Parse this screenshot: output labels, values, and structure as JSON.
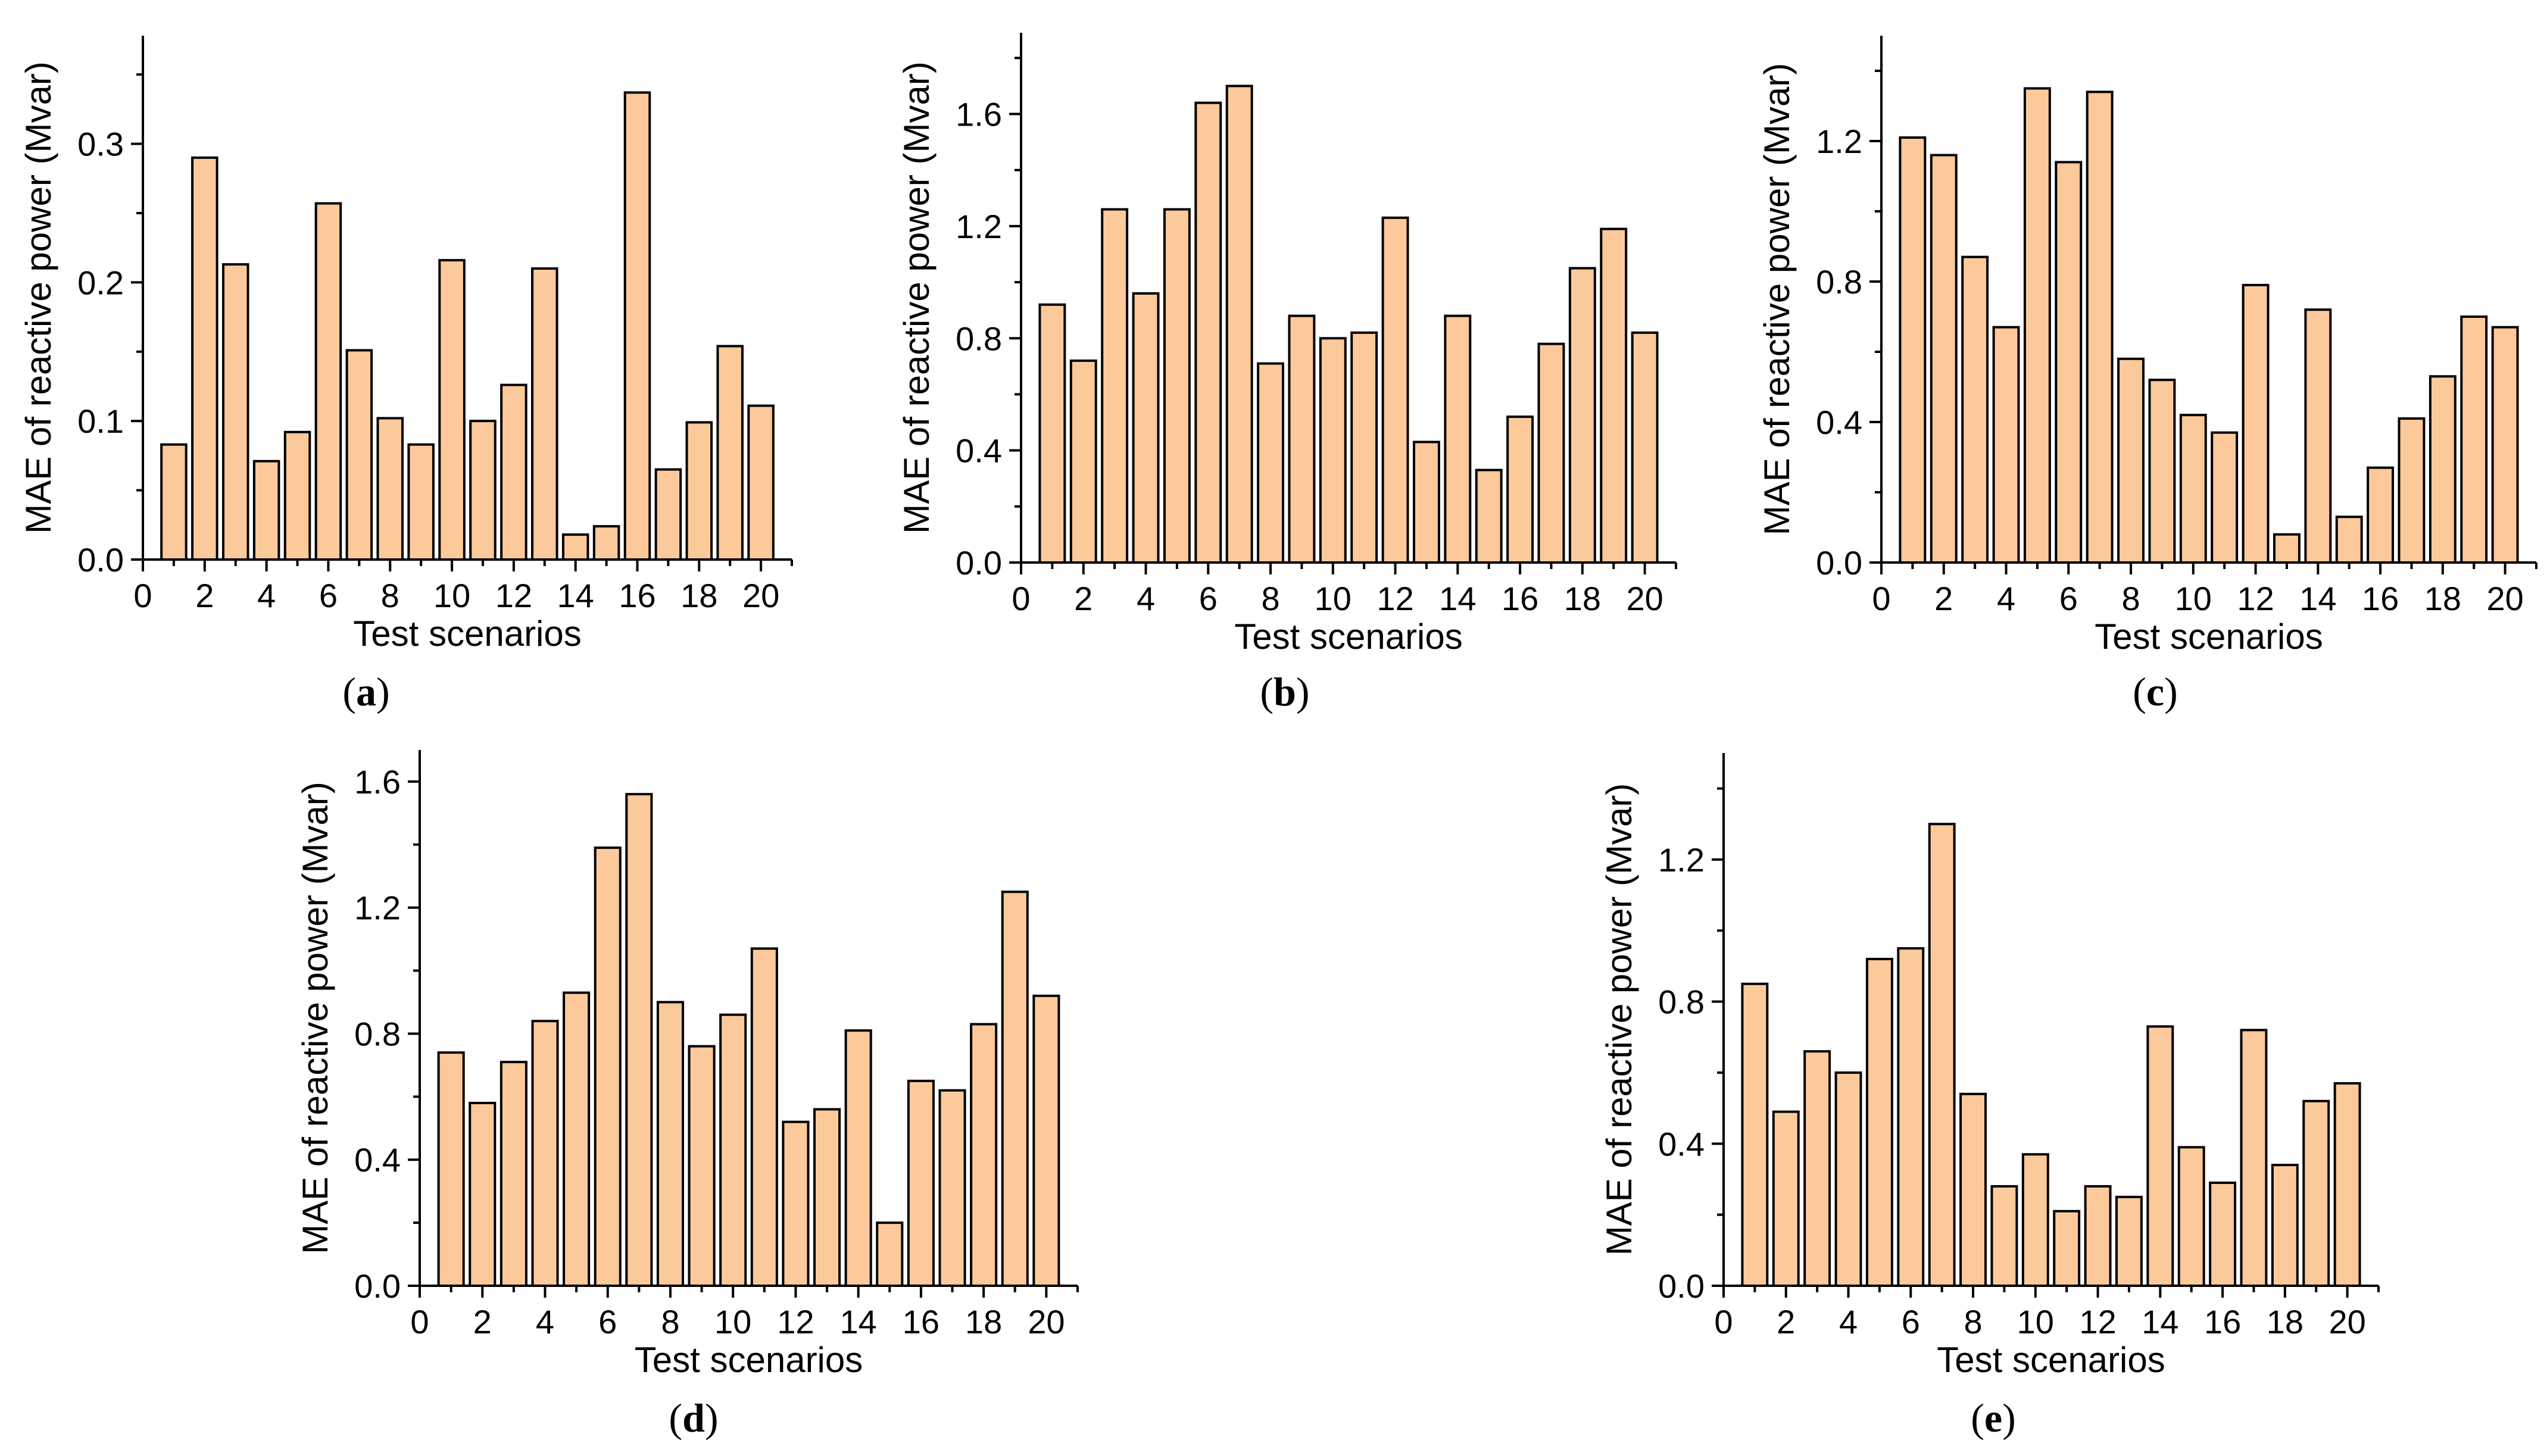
{
  "style": {
    "bar_fill": "#FCC99A",
    "bar_stroke": "#000000",
    "axis_color": "#000000"
  },
  "chart_data": [
    {
      "id": "a",
      "type": "bar",
      "panel_label_open": "(",
      "panel_label_letter": "a",
      "panel_label_close": ")",
      "xlabel": "Test scenarios",
      "ylabel": "MAE of reactive power (Mvar)",
      "x": [
        1,
        2,
        3,
        4,
        5,
        6,
        7,
        8,
        9,
        10,
        11,
        12,
        13,
        14,
        15,
        16,
        17,
        18,
        19,
        20
      ],
      "values": [
        0.083,
        0.29,
        0.213,
        0.071,
        0.092,
        0.257,
        0.151,
        0.102,
        0.083,
        0.216,
        0.1,
        0.126,
        0.21,
        0.018,
        0.024,
        0.337,
        0.065,
        0.099,
        0.154,
        0.111
      ],
      "xlim": [
        0,
        21
      ],
      "ylim": [
        0,
        0.378
      ],
      "xticks": [
        0,
        2,
        4,
        6,
        8,
        10,
        12,
        14,
        16,
        18,
        20
      ],
      "yticks": [
        0.0,
        0.1,
        0.2,
        0.3
      ],
      "ytick_labels": [
        "0.0",
        "0.1",
        "0.2",
        "0.3"
      ],
      "grid": false
    },
    {
      "id": "b",
      "type": "bar",
      "panel_label_open": "(",
      "panel_label_letter": "b",
      "panel_label_close": ")",
      "xlabel": "Test scenarios",
      "ylabel": "MAE of reactive power (Mvar)",
      "x": [
        1,
        2,
        3,
        4,
        5,
        6,
        7,
        8,
        9,
        10,
        11,
        12,
        13,
        14,
        15,
        16,
        17,
        18,
        19,
        20
      ],
      "values": [
        0.92,
        0.72,
        1.26,
        0.96,
        1.26,
        1.64,
        1.7,
        0.71,
        0.88,
        0.8,
        0.82,
        1.23,
        0.43,
        0.88,
        0.33,
        0.52,
        0.78,
        1.05,
        1.19,
        0.82
      ],
      "xlim": [
        0,
        21
      ],
      "ylim": [
        0,
        1.89
      ],
      "xticks": [
        0,
        2,
        4,
        6,
        8,
        10,
        12,
        14,
        16,
        18,
        20
      ],
      "yticks": [
        0.0,
        0.4,
        0.8,
        1.2,
        1.6
      ],
      "ytick_labels": [
        "0.0",
        "0.4",
        "0.8",
        "1.2",
        "1.6"
      ],
      "grid": false
    },
    {
      "id": "c",
      "type": "bar",
      "panel_label_open": "(",
      "panel_label_letter": "c",
      "panel_label_close": ")",
      "xlabel": "Test scenarios",
      "ylabel": "MAE of reactive power (Mvar)",
      "x": [
        1,
        2,
        3,
        4,
        5,
        6,
        7,
        8,
        9,
        10,
        11,
        12,
        13,
        14,
        15,
        16,
        17,
        18,
        19,
        20
      ],
      "values": [
        1.21,
        1.16,
        0.87,
        0.67,
        1.35,
        1.14,
        1.34,
        0.58,
        0.52,
        0.42,
        0.37,
        0.79,
        0.08,
        0.72,
        0.13,
        0.27,
        0.41,
        0.53,
        0.7,
        0.67
      ],
      "xlim": [
        0,
        21
      ],
      "ylim": [
        0,
        1.5
      ],
      "xticks": [
        0,
        2,
        4,
        6,
        8,
        10,
        12,
        14,
        16,
        18,
        20
      ],
      "yticks": [
        0.0,
        0.4,
        0.8,
        1.2
      ],
      "ytick_labels": [
        "0.0",
        "0.4",
        "0.8",
        "1.2"
      ],
      "grid": false
    },
    {
      "id": "d",
      "type": "bar",
      "panel_label_open": "(",
      "panel_label_letter": "d",
      "panel_label_close": ")",
      "xlabel": "Test scenarios",
      "ylabel": "MAE of reactive power (Mvar)",
      "x": [
        1,
        2,
        3,
        4,
        5,
        6,
        7,
        8,
        9,
        10,
        11,
        12,
        13,
        14,
        15,
        16,
        17,
        18,
        19,
        20
      ],
      "values": [
        0.74,
        0.58,
        0.71,
        0.84,
        0.93,
        1.39,
        1.56,
        0.9,
        0.76,
        0.86,
        1.07,
        0.52,
        0.56,
        0.81,
        0.2,
        0.65,
        0.62,
        0.83,
        1.25,
        0.92
      ],
      "xlim": [
        0,
        21
      ],
      "ylim": [
        0,
        1.7
      ],
      "xticks": [
        0,
        2,
        4,
        6,
        8,
        10,
        12,
        14,
        16,
        18,
        20
      ],
      "yticks": [
        0.0,
        0.4,
        0.8,
        1.2,
        1.6
      ],
      "ytick_labels": [
        "0.0",
        "0.4",
        "0.8",
        "1.2",
        "1.6"
      ],
      "grid": false
    },
    {
      "id": "e",
      "type": "bar",
      "panel_label_open": "(",
      "panel_label_letter": "e",
      "panel_label_close": ")",
      "xlabel": "Test scenarios",
      "ylabel": "MAE of reactive power (Mvar)",
      "x": [
        1,
        2,
        3,
        4,
        5,
        6,
        7,
        8,
        9,
        10,
        11,
        12,
        13,
        14,
        15,
        16,
        17,
        18,
        19,
        20
      ],
      "values": [
        0.85,
        0.49,
        0.66,
        0.6,
        0.92,
        0.95,
        1.3,
        0.54,
        0.28,
        0.37,
        0.21,
        0.28,
        0.25,
        0.73,
        0.39,
        0.29,
        0.72,
        0.34,
        0.52,
        0.57
      ],
      "xlim": [
        0,
        21
      ],
      "ylim": [
        0,
        1.5
      ],
      "xticks": [
        0,
        2,
        4,
        6,
        8,
        10,
        12,
        14,
        16,
        18,
        20
      ],
      "yticks": [
        0.0,
        0.4,
        0.8,
        1.2
      ],
      "ytick_labels": [
        "0.0",
        "0.4",
        "0.8",
        "1.2"
      ],
      "grid": false
    }
  ]
}
